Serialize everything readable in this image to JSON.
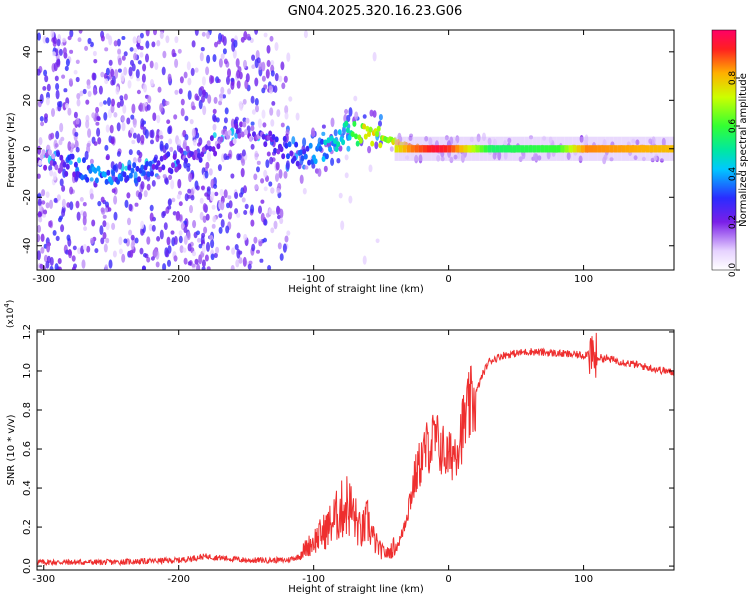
{
  "title": "GN04.2025.320.16.23.G06",
  "chart_data": [
    {
      "type": "heatmap",
      "xlabel": "Height of straight line (km)",
      "ylabel": "Frequency (Hz)",
      "xlim": [
        -305,
        167
      ],
      "ylim": [
        -50,
        49
      ],
      "xticks": [
        -300,
        -200,
        -100,
        0,
        100
      ],
      "xtick_labels": [
        "-300",
        "-200",
        "-100",
        "0",
        "100"
      ],
      "yticks": [
        -40,
        -20,
        0,
        20,
        40
      ],
      "ytick_labels": [
        "-40",
        "-20",
        "0",
        "20",
        "40"
      ],
      "colorbar": {
        "label": "Normalized spectral amplitude",
        "range": [
          0,
          1
        ],
        "ticks": [
          0.0,
          0.2,
          0.4,
          0.6,
          0.8
        ],
        "tick_labels": [
          "0.0",
          "0.2",
          "0.4",
          "0.6",
          "0.8"
        ]
      },
      "ridge": [
        {
          "x": -300,
          "f": -4,
          "amp": 0.15
        },
        {
          "x": -260,
          "f": -10,
          "amp": 0.35
        },
        {
          "x": -235,
          "f": -10,
          "amp": 0.3
        },
        {
          "x": -200,
          "f": -5,
          "amp": 0.2
        },
        {
          "x": -150,
          "f": 8,
          "amp": 0.15
        },
        {
          "x": -110,
          "f": -3,
          "amp": 0.3
        },
        {
          "x": -90,
          "f": 0,
          "amp": 0.4
        },
        {
          "x": -75,
          "f": 7,
          "amp": 0.45
        },
        {
          "x": -60,
          "f": 5,
          "amp": 0.75
        },
        {
          "x": -45,
          "f": 4,
          "amp": 0.7
        },
        {
          "x": -30,
          "f": 1,
          "amp": 0.85
        },
        {
          "x": -10,
          "f": 0,
          "amp": 0.95
        },
        {
          "x": 0,
          "f": 0,
          "amp": 0.9
        },
        {
          "x": 30,
          "f": 0,
          "amp": 0.55
        },
        {
          "x": 80,
          "f": 0,
          "amp": 0.6
        },
        {
          "x": 100,
          "f": 0,
          "amp": 0.85
        },
        {
          "x": 167,
          "f": 0,
          "amp": 0.8
        }
      ]
    },
    {
      "type": "line",
      "xlabel": "Height of straight line (km)",
      "ylabel": "SNR (10 * v/v)",
      "y_multiplier": "(x10",
      "y_multiplier_exp": "4",
      "y_multiplier_close": ")",
      "xlim": [
        -305,
        167
      ],
      "ylim": [
        -0.02,
        1.21
      ],
      "xticks": [
        -300,
        -200,
        -100,
        0,
        100
      ],
      "xtick_labels": [
        "-300",
        "-200",
        "-100",
        "0",
        "100"
      ],
      "yticks": [
        0.0,
        0.2,
        0.4,
        0.6,
        0.8,
        1.0,
        1.2
      ],
      "ytick_labels": [
        "0.0",
        "0.2",
        "0.4",
        "0.6",
        "0.8",
        "1.0",
        "1.2"
      ],
      "series": [
        {
          "name": "SNR",
          "color": "#ee2e2e",
          "x": [
            -305,
            -250,
            -200,
            -180,
            -150,
            -120,
            -110,
            -100,
            -90,
            -80,
            -75,
            -70,
            -65,
            -60,
            -55,
            -50,
            -45,
            -40,
            -35,
            -30,
            -25,
            -20,
            -15,
            -10,
            -5,
            0,
            5,
            10,
            15,
            20,
            25,
            30,
            40,
            50,
            60,
            80,
            100,
            105,
            110,
            120,
            140,
            167
          ],
          "y": [
            0.02,
            0.02,
            0.03,
            0.05,
            0.03,
            0.03,
            0.05,
            0.1,
            0.15,
            0.22,
            0.25,
            0.2,
            0.13,
            0.18,
            0.1,
            0.06,
            0.05,
            0.08,
            0.15,
            0.3,
            0.45,
            0.55,
            0.62,
            0.65,
            0.6,
            0.55,
            0.6,
            0.7,
            0.8,
            0.88,
            0.98,
            1.05,
            1.08,
            1.09,
            1.1,
            1.09,
            1.08,
            1.1,
            1.07,
            1.06,
            1.03,
            0.99
          ]
        }
      ]
    }
  ]
}
